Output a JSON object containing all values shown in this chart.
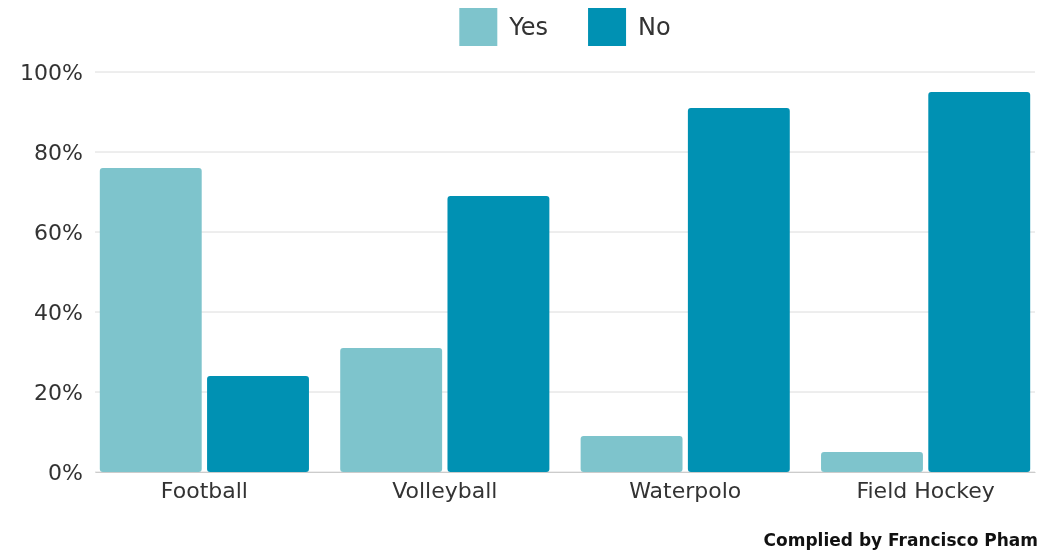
{
  "chart_data": {
    "type": "bar",
    "categories": [
      "Football",
      "Volleyball",
      "Waterpolo",
      "Field Hockey"
    ],
    "series": [
      {
        "name": "Yes",
        "color": "#7ec4cc",
        "values": [
          76,
          31,
          9,
          5
        ]
      },
      {
        "name": "No",
        "color": "#0091b3",
        "values": [
          24,
          69,
          91,
          95
        ]
      }
    ],
    "ylim": [
      0,
      100
    ],
    "yticks": [
      {
        "value": 0,
        "label": "0%"
      },
      {
        "value": 20,
        "label": "20%"
      },
      {
        "value": 40,
        "label": "40%"
      },
      {
        "value": 60,
        "label": "60%"
      },
      {
        "value": 80,
        "label": "80%"
      },
      {
        "value": 100,
        "label": "100%"
      }
    ],
    "grid": "y",
    "legend": "top",
    "annotations": [
      "Complied by Francisco Pham"
    ]
  }
}
